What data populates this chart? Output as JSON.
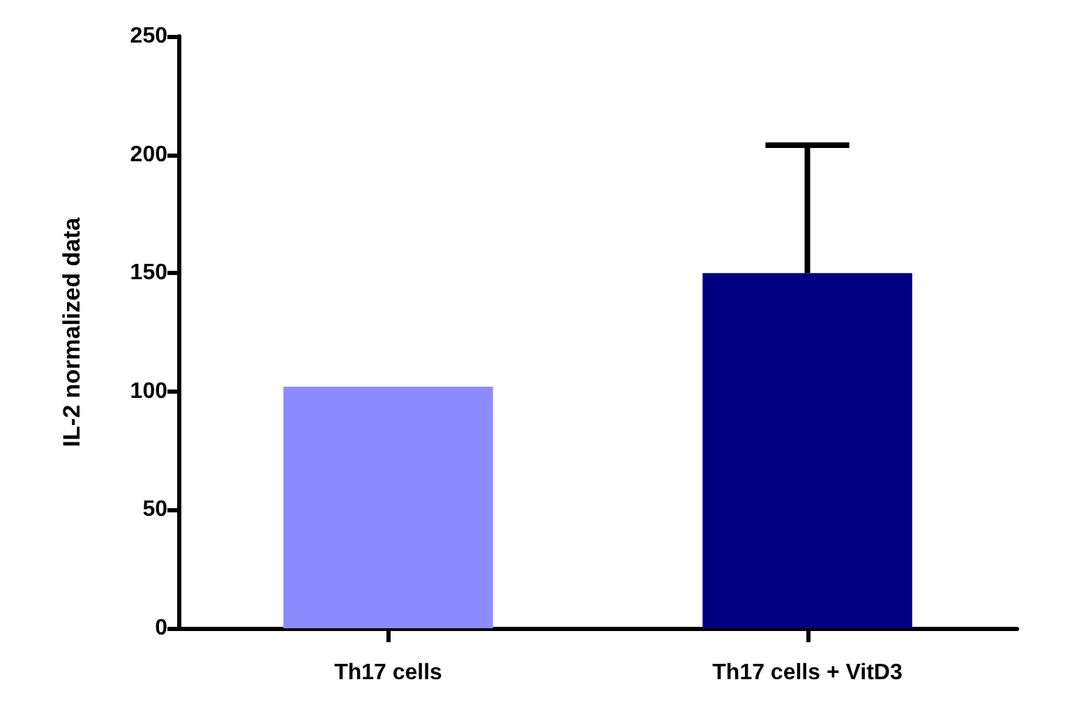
{
  "chart_data": {
    "type": "bar",
    "ylabel": "IL-2 normalized data",
    "categories": [
      "Th17 cells",
      "Th17 cells + VitD3"
    ],
    "values": [
      102,
      150
    ],
    "colors": [
      "#8c8cff",
      "#000080"
    ],
    "errors": [
      null,
      [
        150,
        204
      ]
    ],
    "ylim": [
      0,
      250
    ],
    "yticks": [
      0,
      50,
      100,
      150,
      200,
      250
    ],
    "grid": false
  }
}
